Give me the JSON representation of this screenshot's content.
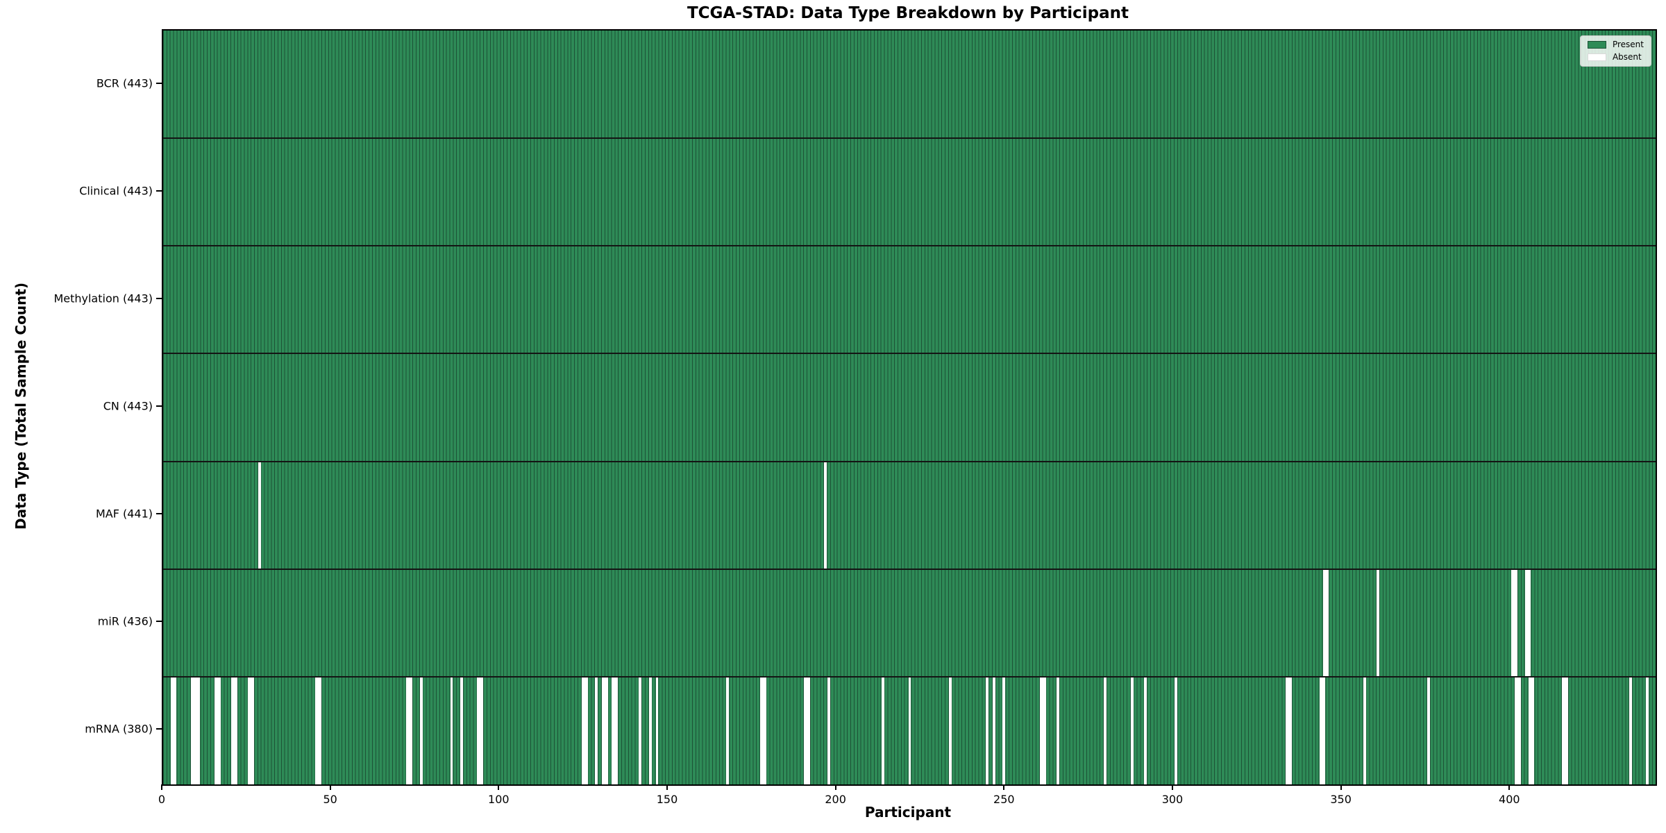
{
  "title": "TCGA-STAD: Data Type Breakdown by Participant",
  "x_axis_title": "Participant",
  "y_axis_title": "Data Type (Total Sample Count)",
  "legend": {
    "present_label": "Present",
    "absent_label": "Absent"
  },
  "colors": {
    "present": "#2e8b57",
    "bar_edge": "#1c5236",
    "absent": "#ffffff",
    "row_divider": "#141414",
    "plot_border": "#000000",
    "legend_border": "#cccccc",
    "absent_swatch_border": "#d9d9d9"
  },
  "chart_data": {
    "type": "heatmap",
    "title": "TCGA-STAD: Data Type Breakdown by Participant",
    "xlabel": "Participant",
    "ylabel": "Data Type (Total Sample Count)",
    "x_range": [
      0,
      443
    ],
    "x_ticks": [
      0,
      50,
      100,
      150,
      200,
      250,
      300,
      350,
      400
    ],
    "n_participants": 443,
    "grid": false,
    "legend_position": "upper right",
    "legend_entries": [
      {
        "label": "Present",
        "color": "#2e8b57"
      },
      {
        "label": "Absent",
        "color": "#ffffff"
      }
    ],
    "rows": [
      {
        "name": "BCR",
        "label": "BCR (443)",
        "present_total": 443,
        "absent_participants": []
      },
      {
        "name": "Clinical",
        "label": "Clinical (443)",
        "present_total": 443,
        "absent_participants": []
      },
      {
        "name": "Methylation",
        "label": "Methylation (443)",
        "present_total": 443,
        "absent_participants": []
      },
      {
        "name": "CN",
        "label": "CN (443)",
        "present_total": 443,
        "absent_participants": []
      },
      {
        "name": "MAF",
        "label": "MAF (441)",
        "present_total": 441,
        "absent_participants": [
          28,
          196
        ]
      },
      {
        "name": "miR",
        "label": "miR (436)",
        "present_total": 436,
        "absent_participants": [
          344,
          345,
          360,
          400,
          401,
          404,
          405
        ]
      },
      {
        "name": "mRNA",
        "label": "mRNA (380)",
        "present_total": 380,
        "absent_participants": [
          2,
          3,
          8,
          9,
          10,
          15,
          16,
          20,
          21,
          25,
          26,
          45,
          46,
          72,
          73,
          76,
          85,
          88,
          93,
          94,
          124,
          125,
          128,
          130,
          131,
          133,
          134,
          141,
          144,
          146,
          167,
          177,
          178,
          190,
          191,
          197,
          213,
          221,
          233,
          244,
          246,
          249,
          260,
          261,
          265,
          279,
          287,
          291,
          300,
          333,
          334,
          343,
          344,
          356,
          375,
          401,
          402,
          405,
          406,
          415,
          416,
          435,
          440
        ]
      }
    ]
  }
}
